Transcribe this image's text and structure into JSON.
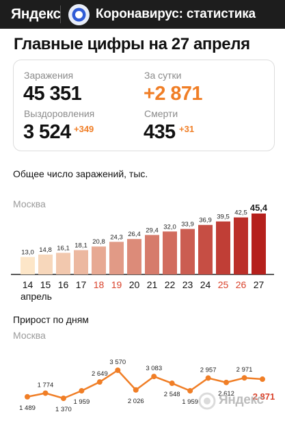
{
  "header": {
    "brand": "Яндекс",
    "title": "Коронавирус: статистика"
  },
  "headline": "Главные цифры на 27 апреля",
  "stats": {
    "infected_label": "Заражения",
    "infected_value": "45 351",
    "daily_label": "За сутки",
    "daily_value": "+2 871",
    "recovered_label": "Выздоровления",
    "recovered_value": "3 524",
    "recovered_delta": "+349",
    "deaths_label": "Смерти",
    "deaths_value": "435",
    "deaths_delta": "+31"
  },
  "colors": {
    "accent": "#f07e26",
    "weekend_label": "#d9412a",
    "bar_start": "#fde6c8",
    "bar_end": "#b5201c",
    "topbar": "#1d1d1d"
  },
  "chart_data": [
    {
      "type": "bar",
      "title": "Общее число заражений, тыс.",
      "series_label": "Москва",
      "categories": [
        "14",
        "15",
        "16",
        "17",
        "18",
        "19",
        "20",
        "21",
        "22",
        "23",
        "24",
        "25",
        "26",
        "27"
      ],
      "values": [
        13.0,
        14.8,
        16.1,
        18.1,
        20.8,
        24.3,
        26.4,
        29.4,
        32.0,
        33.9,
        36.9,
        39.5,
        42.5,
        45.4
      ],
      "data_labels": [
        "13,0",
        "14,8",
        "16,1",
        "18,1",
        "20,8",
        "24,3",
        "26,4",
        "29,4",
        "32,0",
        "33,9",
        "36,9",
        "39,5",
        "42,5",
        "45,4"
      ],
      "highlighted_categories": [
        "18",
        "19",
        "25",
        "26"
      ],
      "x_sublabel": "апрель",
      "ylim": [
        0,
        45.4
      ],
      "grid": false
    },
    {
      "type": "line",
      "title": "Прирост по дням",
      "series_label": "Москва",
      "values": [
        1489,
        1774,
        1370,
        1959,
        2649,
        3570,
        2026,
        3083,
        2548,
        1959,
        2957,
        2612,
        2971,
        2871
      ],
      "data_labels": [
        "1 489",
        "1 774",
        "1 370",
        "1 959",
        "2 649",
        "3 570",
        "2 026",
        "3 083",
        "2 548",
        "1 959",
        "2 957",
        "2 612",
        "2 971",
        "2 871"
      ],
      "grid": false
    }
  ],
  "watermark": "Яндекс"
}
